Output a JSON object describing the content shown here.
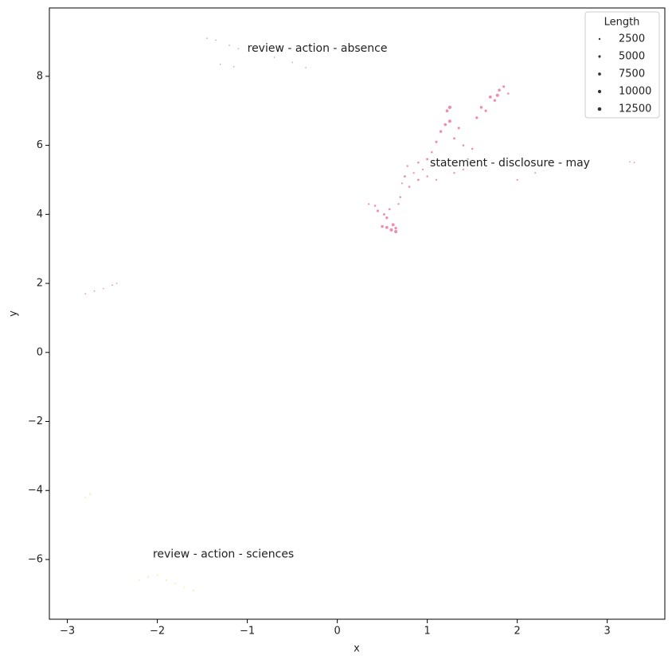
{
  "chart_data": {
    "type": "scatter",
    "xlabel": "x",
    "ylabel": "y",
    "xlim": [
      -3.2,
      3.64
    ],
    "ylim": [
      -7.73,
      9.98
    ],
    "xticks": [
      {
        "value": -3,
        "label": "−3"
      },
      {
        "value": -2,
        "label": "−2"
      },
      {
        "value": -1,
        "label": "−1"
      },
      0,
      1,
      2,
      3
    ],
    "yticks": [
      {
        "value": -6,
        "label": "−6"
      },
      {
        "value": -4,
        "label": "−4"
      },
      {
        "value": -2,
        "label": "−2"
      },
      0,
      2,
      4,
      6,
      8
    ],
    "size_legend": {
      "title": "Length",
      "values": [
        2500,
        5000,
        7500,
        10000,
        12500
      ],
      "corner": "upper right"
    },
    "series": [
      {
        "color": "#f08cae",
        "x": [
          0.35,
          0.42,
          0.45,
          0.5,
          0.52,
          0.55,
          0.58,
          0.6,
          0.62,
          0.65,
          0.68,
          0.7,
          0.72,
          0.75,
          0.78,
          0.8,
          0.85,
          0.9,
          0.95,
          1.0,
          1.05,
          1.1,
          1.15,
          1.2,
          1.22,
          1.25,
          1.3,
          1.35,
          1.4,
          1.45,
          1.5,
          1.55,
          1.6,
          1.65,
          1.7,
          1.75,
          1.8,
          1.85,
          1.9,
          1.2,
          1.3,
          1.1,
          0.9,
          1.0,
          1.4,
          1.6,
          2.0,
          2.2,
          3.3,
          3.25,
          0.55,
          0.65,
          1.25,
          1.78,
          -2.8,
          -2.7,
          -2.6,
          -2.5,
          -2.45
        ],
        "y": [
          4.3,
          4.25,
          4.1,
          3.65,
          4.0,
          3.9,
          4.15,
          3.55,
          3.7,
          3.6,
          4.3,
          4.5,
          4.9,
          5.1,
          5.4,
          4.8,
          5.2,
          5.0,
          5.3,
          5.6,
          5.8,
          6.1,
          6.4,
          6.6,
          7.0,
          6.7,
          6.2,
          6.5,
          6.0,
          5.6,
          5.9,
          6.8,
          7.1,
          7.0,
          7.4,
          7.3,
          7.6,
          7.7,
          7.5,
          5.4,
          5.2,
          5.0,
          5.5,
          5.1,
          5.3,
          5.5,
          5.0,
          5.2,
          5.5,
          5.52,
          3.62,
          3.5,
          7.1,
          7.45,
          1.7,
          1.78,
          1.85,
          1.95,
          2.0
        ],
        "sizes": [
          2000,
          3000,
          5000,
          7000,
          4000,
          6000,
          3000,
          9000,
          8000,
          6000,
          2500,
          3000,
          2000,
          4000,
          2500,
          3000,
          2000,
          3500,
          2000,
          4000,
          3000,
          5000,
          6000,
          7000,
          8000,
          9000,
          4000,
          5000,
          3000,
          2500,
          3000,
          6000,
          7000,
          5000,
          8000,
          6000,
          7000,
          5000,
          3000,
          2000,
          2500,
          2000,
          3000,
          2500,
          2000,
          2500,
          2000,
          1500,
          1000,
          1000,
          8000,
          9000,
          10000,
          9000,
          1000,
          1000,
          1000,
          1000,
          1000
        ]
      },
      {
        "color": "#a8bca8",
        "x": [
          -1.45,
          -1.35,
          -1.2,
          -1.1,
          -0.9,
          -0.7,
          -0.5,
          -0.35,
          -1.3,
          -1.15
        ],
        "y": [
          9.1,
          9.05,
          8.9,
          8.8,
          8.7,
          8.55,
          8.4,
          8.25,
          8.35,
          8.28
        ],
        "sizes": [
          1000,
          1000,
          1000,
          1000,
          1000,
          1000,
          1000,
          1000,
          1000,
          1000
        ]
      },
      {
        "color": "#f3eca0",
        "x": [
          -2.75,
          -2.8,
          -2.1,
          -2.0,
          -1.9,
          -1.8,
          -1.7,
          -1.6,
          -2.2
        ],
        "y": [
          -4.1,
          -4.2,
          -6.5,
          -6.45,
          -6.6,
          -6.7,
          -6.8,
          -6.9,
          -6.6
        ],
        "sizes": [
          1500,
          1000,
          1500,
          1500,
          1500,
          1000,
          1000,
          1500,
          1000
        ]
      }
    ],
    "annotations": [
      {
        "text": "review - action - absence",
        "x": -1.0,
        "y": 8.8,
        "color": "#2e7d32"
      },
      {
        "text": "statement - disclosure - may",
        "x": 1.03,
        "y": 5.48,
        "color": "#a0153e"
      },
      {
        "text": "review - action - sciences",
        "x": -2.05,
        "y": -5.85,
        "color": "#c8b400"
      }
    ]
  }
}
